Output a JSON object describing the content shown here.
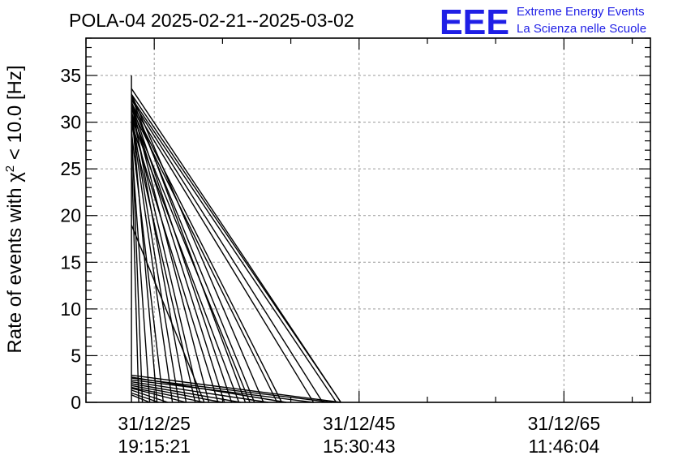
{
  "header": {
    "title": "POLA-04 2025-02-21--2025-03-02",
    "logo_text": "EEE",
    "logo_line1": "Extreme Energy Events",
    "logo_line2": "La Scienza nelle Scuole",
    "logo_color": "#1f1fe6"
  },
  "chart_data": {
    "type": "line",
    "title": "POLA-04 2025-02-21--2025-03-02",
    "ylabel_main": "Rate of events with ",
    "ylabel_chi": "χ",
    "ylabel_sup": "2",
    "ylabel_tail": " < 10.0 [Hz]",
    "ylim": [
      0,
      39
    ],
    "y_ticks": [
      0,
      5,
      10,
      15,
      20,
      25,
      30,
      35
    ],
    "x_tick_labels": [
      {
        "date": "31/12/25",
        "time": "19:15:21"
      },
      {
        "date": "31/12/45",
        "time": "15:30:43"
      },
      {
        "date": "31/12/65",
        "time": "11:46:04"
      }
    ],
    "grid": true,
    "line_color": "#000000",
    "series": [
      {
        "x": [
          5,
          5,
          5,
          5,
          5,
          5,
          5,
          5,
          5,
          5,
          5
        ],
        "y": [
          0,
          35.0,
          33.5,
          31.8,
          29.5,
          27.0,
          32.5,
          19.0,
          3.0,
          2.0,
          0.5
        ]
      },
      {
        "x": [
          5,
          28
        ],
        "y": [
          33.6,
          0
        ]
      },
      {
        "x": [
          5,
          28
        ],
        "y": [
          33.0,
          0
        ]
      },
      {
        "x": [
          5,
          27.5
        ],
        "y": [
          32.6,
          0
        ]
      },
      {
        "x": [
          5,
          26
        ],
        "y": [
          32.4,
          0
        ]
      },
      {
        "x": [
          5,
          25
        ],
        "y": [
          32.0,
          0
        ]
      },
      {
        "x": [
          5,
          21.5
        ],
        "y": [
          31.8,
          0
        ]
      },
      {
        "x": [
          5,
          21
        ],
        "y": [
          31.4,
          0
        ]
      },
      {
        "x": [
          5,
          19.5
        ],
        "y": [
          33.0,
          0
        ]
      },
      {
        "x": [
          5,
          18.5
        ],
        "y": [
          32.2,
          0
        ]
      },
      {
        "x": [
          5,
          18
        ],
        "y": [
          31.0,
          0
        ]
      },
      {
        "x": [
          5,
          17.5
        ],
        "y": [
          32.8,
          0
        ]
      },
      {
        "x": [
          5,
          16.8
        ],
        "y": [
          30.5,
          0
        ]
      },
      {
        "x": [
          5,
          16.0
        ],
        "y": [
          32.0,
          0
        ]
      },
      {
        "x": [
          5,
          15.2
        ],
        "y": [
          31.6,
          0
        ]
      },
      {
        "x": [
          5,
          14.5
        ],
        "y": [
          30.0,
          0
        ]
      },
      {
        "x": [
          5,
          13.5
        ],
        "y": [
          32.0,
          0
        ]
      },
      {
        "x": [
          5,
          12.5
        ],
        "y": [
          31.2,
          0
        ]
      },
      {
        "x": [
          5,
          12.0
        ],
        "y": [
          29.8,
          0
        ]
      },
      {
        "x": [
          5,
          11.0
        ],
        "y": [
          32.2,
          0
        ]
      },
      {
        "x": [
          5,
          10.2
        ],
        "y": [
          31.0,
          0
        ]
      },
      {
        "x": [
          5,
          9.5
        ],
        "y": [
          30.5,
          0
        ]
      },
      {
        "x": [
          5,
          8.5
        ],
        "y": [
          29.0,
          0
        ]
      },
      {
        "x": [
          5,
          7.8
        ],
        "y": [
          31.5,
          0
        ]
      },
      {
        "x": [
          5,
          7.0
        ],
        "y": [
          28.0,
          0
        ]
      },
      {
        "x": [
          5,
          6.2
        ],
        "y": [
          30.0,
          0
        ]
      },
      {
        "x": [
          5,
          5.8
        ],
        "y": [
          27.0,
          0
        ]
      },
      {
        "x": [
          5,
          13.0
        ],
        "y": [
          19.0,
          0
        ]
      },
      {
        "x": [
          5,
          28
        ],
        "y": [
          2.9,
          0
        ]
      },
      {
        "x": [
          5,
          27
        ],
        "y": [
          2.6,
          0
        ]
      },
      {
        "x": [
          5,
          25
        ],
        "y": [
          2.4,
          0
        ]
      },
      {
        "x": [
          5,
          22
        ],
        "y": [
          2.7,
          0
        ]
      },
      {
        "x": [
          5,
          20
        ],
        "y": [
          2.2,
          0
        ]
      },
      {
        "x": [
          5,
          17
        ],
        "y": [
          2.0,
          0
        ]
      },
      {
        "x": [
          5,
          15
        ],
        "y": [
          1.8,
          0
        ]
      },
      {
        "x": [
          5,
          13
        ],
        "y": [
          1.6,
          0
        ]
      },
      {
        "x": [
          5,
          11
        ],
        "y": [
          1.5,
          0
        ]
      },
      {
        "x": [
          5,
          9
        ],
        "y": [
          1.3,
          0
        ]
      },
      {
        "x": [
          5,
          8
        ],
        "y": [
          1.0,
          0
        ]
      },
      {
        "x": [
          5,
          7
        ],
        "y": [
          0.8,
          0
        ]
      }
    ]
  }
}
